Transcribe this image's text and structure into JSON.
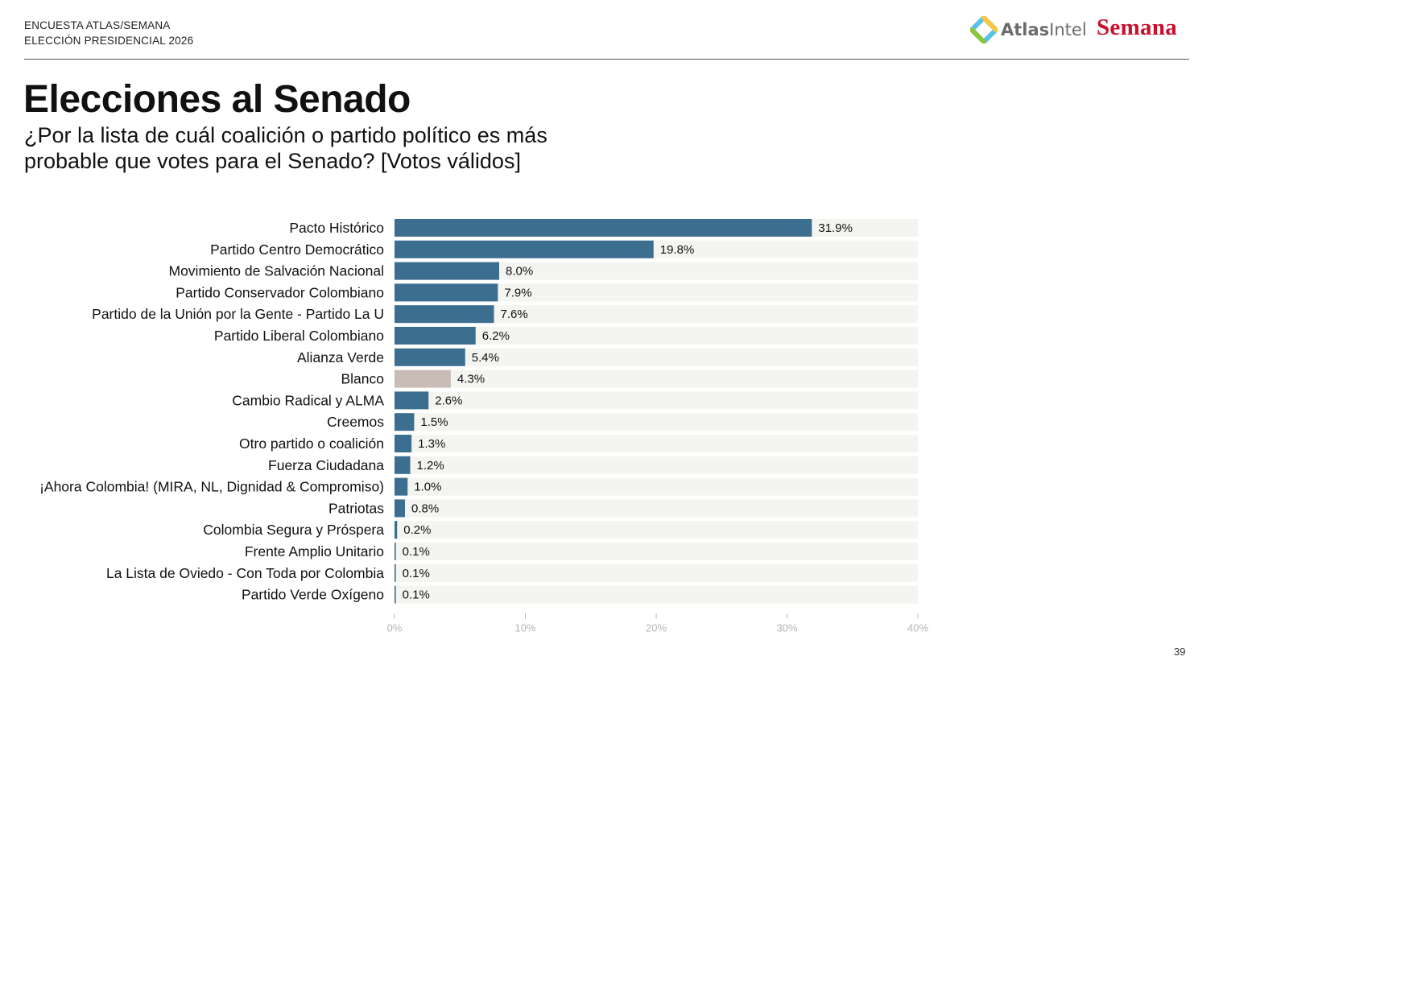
{
  "header": {
    "line1": "ENCUESTA ATLAS/SEMANA",
    "line2": "ELECCIÓN PRESIDENCIAL 2026",
    "logo_atlas_bold": "Atlas",
    "logo_atlas_light": "Intel",
    "logo_semana": "Semana"
  },
  "title": "Elecciones al Senado",
  "subtitle": "¿Por la lista de cuál coalición o partido político es más probable que votes para el Senado? [Votos válidos]",
  "page_number": "39",
  "colors": {
    "bar": "#3c6e8f",
    "bar_highlight": "#c9bcb7",
    "track": "#f4f4f1",
    "tick": "#b5b5b5"
  },
  "chart_data": {
    "type": "bar",
    "orientation": "horizontal",
    "title": "",
    "xlabel": "",
    "ylabel": "",
    "xlim": [
      0,
      40
    ],
    "ticks": [
      0,
      10,
      20,
      30,
      40
    ],
    "tick_labels": [
      "0%",
      "10%",
      "20%",
      "30%",
      "40%"
    ],
    "categories": [
      "Pacto Histórico",
      "Partido Centro Democrático",
      "Movimiento de Salvación Nacional",
      "Partido Conservador Colombiano",
      "Partido de la Unión por la Gente - Partido La U",
      "Partido Liberal Colombiano",
      "Alianza Verde",
      "Blanco",
      "Cambio Radical y ALMA",
      "Creemos",
      "Otro partido o coalición",
      "Fuerza Ciudadana",
      "¡Ahora Colombia! (MIRA, NL, Dignidad & Compromiso)",
      "Patriotas",
      "Colombia Segura y Próspera",
      "Frente Amplio Unitario",
      "La Lista de Oviedo - Con Toda por Colombia",
      "Partido Verde Oxígeno"
    ],
    "values": [
      31.9,
      19.8,
      8.0,
      7.9,
      7.6,
      6.2,
      5.4,
      4.3,
      2.6,
      1.5,
      1.3,
      1.2,
      1.0,
      0.8,
      0.2,
      0.1,
      0.1,
      0.1
    ],
    "value_labels": [
      "31.9%",
      "19.8%",
      "8.0%",
      "7.9%",
      "7.6%",
      "6.2%",
      "5.4%",
      "4.3%",
      "2.6%",
      "1.5%",
      "1.3%",
      "1.2%",
      "1.0%",
      "0.8%",
      "0.2%",
      "0.1%",
      "0.1%",
      "0.1%"
    ],
    "highlight_category": "Blanco",
    "grid": false,
    "legend": "none"
  }
}
